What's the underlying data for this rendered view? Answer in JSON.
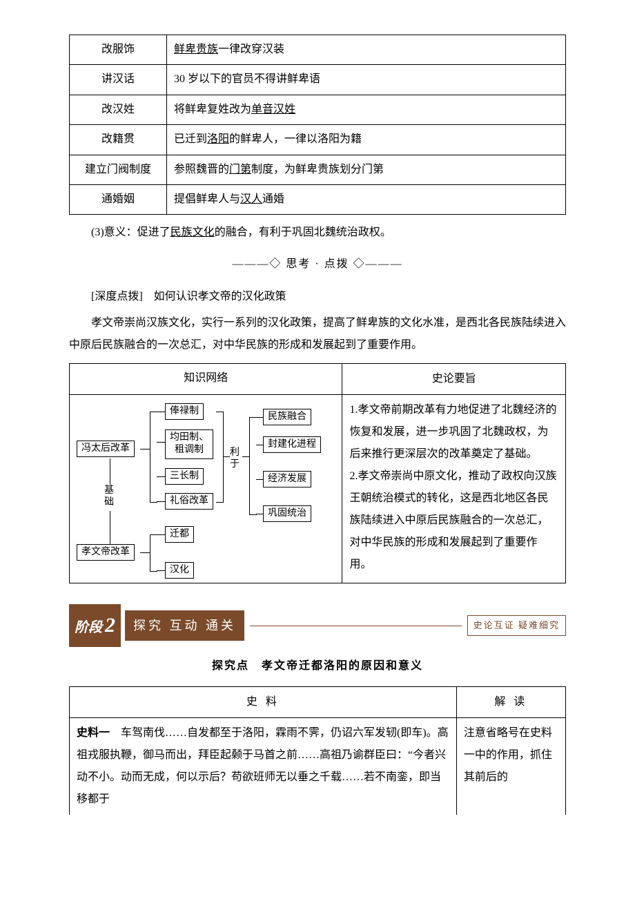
{
  "reform_table": {
    "rows": [
      {
        "name": "改服饰",
        "desc_parts": [
          {
            "t": "",
            "u": false
          },
          {
            "t": "鲜卑贵族",
            "u": true
          },
          {
            "t": "一律改穿汉装",
            "u": false
          }
        ]
      },
      {
        "name": "讲汉话",
        "desc_parts": [
          {
            "t": "30 岁以下的官员不得讲鲜卑语",
            "u": false
          }
        ]
      },
      {
        "name": "改汉姓",
        "desc_parts": [
          {
            "t": "将鲜卑复姓改为",
            "u": false
          },
          {
            "t": "单音汉姓",
            "u": true
          }
        ]
      },
      {
        "name": "改籍贯",
        "desc_parts": [
          {
            "t": "已迁到",
            "u": false
          },
          {
            "t": "洛阳",
            "u": true
          },
          {
            "t": "的鲜卑人，一律以洛阳为籍",
            "u": false
          }
        ]
      },
      {
        "name": "建立门阀制度",
        "desc_parts": [
          {
            "t": "参照魏晋的",
            "u": false
          },
          {
            "t": "门第",
            "u": true
          },
          {
            "t": "制度，为鲜卑贵族划分门第",
            "u": false
          }
        ]
      },
      {
        "name": "通婚姻",
        "desc_parts": [
          {
            "t": "提倡鲜卑人与",
            "u": false
          },
          {
            "t": "汉人",
            "u": true
          },
          {
            "t": "通婚",
            "u": false
          }
        ]
      }
    ]
  },
  "meaning": {
    "prefix": "(3)意义：促进了",
    "underline": "民族文化",
    "suffix": "的融合，有利于巩固北魏统治政权。"
  },
  "divider": "———◇ 思考 · 点拨 ◇———",
  "deep_title": "[深度点拨]　如何认识孝文帝的汉化政策",
  "deep_body": "孝文帝崇尚汉族文化，实行一系列的汉化政策，提高了鲜卑族的文化水准，是西北各民族陆续进入中原后民族融合的一次总汇，对中华民族的形成和发展起到了重要作用。",
  "knowledge": {
    "head_left": "知识网络",
    "head_right": "史论要旨",
    "right_text": "1.孝文帝前期改革有力地促进了北魏经济的恢复和发展，进一步巩固了北魏政权，为后来推行更深层次的改革奠定了基础。\n2.孝文帝崇尚中原文化，推动了政权向汉族王朝统治模式的转化，这是西北地区各民族陆续进入中原后民族融合的一次总汇，对中华民族的形成和发展起到了重要作用。"
  },
  "diagram": {
    "feng": "冯太后改革",
    "xiao": "孝文帝改革",
    "base": "基\n础",
    "items_top": [
      "俸禄制",
      "均田制、\n租调制",
      "三长制",
      "礼俗改革"
    ],
    "items_bottom": [
      "迁都",
      "汉化"
    ],
    "liyu": "利\n于",
    "effects": [
      "民族融合",
      "封建化进程",
      "经济发展",
      "巩固统治"
    ]
  },
  "stage": {
    "label": "阶段",
    "num": "2",
    "title": "探究 互动 通关",
    "sub": "史论互证 疑难细究"
  },
  "inquiry_title": "探究点　孝文帝迁都洛阳的原因和意义",
  "material": {
    "head_left": "史 料",
    "head_right": "解 读",
    "left_label": "史料一",
    "left_body": "　车驾南伐……自发都至于洛阳，霖雨不霁，仍诏六军发轫(即车)。高祖戎服执鞭，御马而出，拜臣起颡于马首之前……高祖乃谕群臣曰：“今者兴动不小。动而无成，何以示后？苟欲班师无以垂之千载……若不南銮，即当移都于",
    "right_body": "注意省略号在史料一中的作用，抓住其前后的"
  },
  "colors": {
    "text": "#000000",
    "banner": "#7a4a2a",
    "background": "#ffffff"
  }
}
